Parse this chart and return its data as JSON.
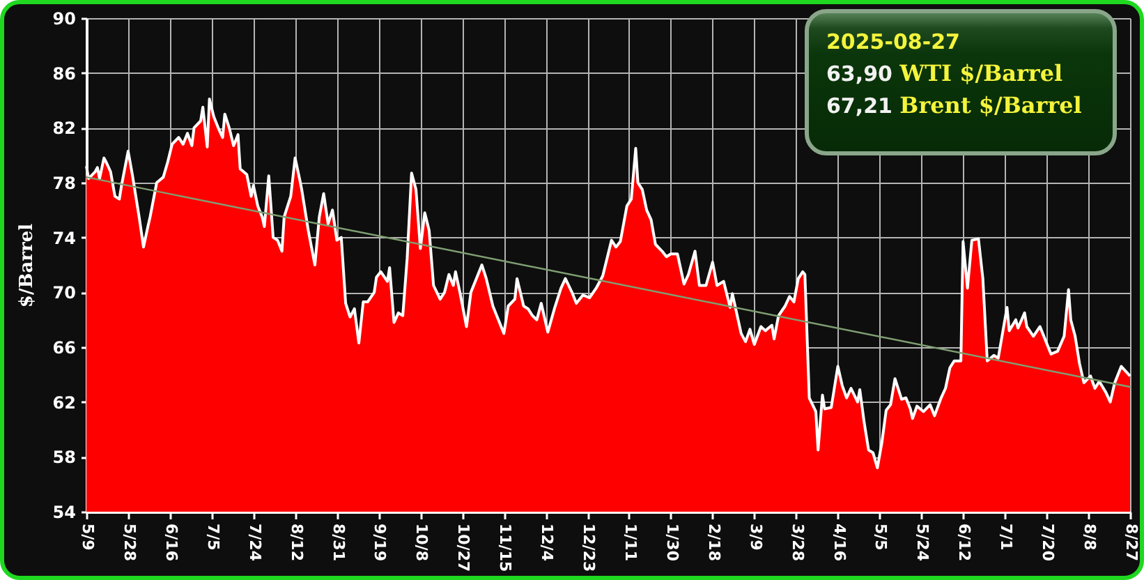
{
  "chart_data": {
    "type": "area",
    "ylabel": "$/Barrel",
    "annotations": [
      "2025-08-27",
      "63,90 WTI $/Barrel",
      "67,21 Brent $/Barrel"
    ],
    "xlim": [
      "2024-05-09",
      "2025-08-27"
    ],
    "xticks": [
      {
        "value": "2024-05-09",
        "label": "5/9"
      },
      {
        "value": "2024-05-28",
        "label": "5/28"
      },
      {
        "value": "2024-06-16",
        "label": "6/16"
      },
      {
        "value": "2024-07-05",
        "label": "7/5"
      },
      {
        "value": "2024-07-24",
        "label": "7/24"
      },
      {
        "value": "2024-08-12",
        "label": "8/12"
      },
      {
        "value": "2024-08-31",
        "label": "8/31"
      },
      {
        "value": "2024-09-19",
        "label": "9/19"
      },
      {
        "value": "2024-10-08",
        "label": "10/8"
      },
      {
        "value": "2024-10-27",
        "label": "10/27"
      },
      {
        "value": "2024-11-15",
        "label": "11/15"
      },
      {
        "value": "2024-12-04",
        "label": "12/4"
      },
      {
        "value": "2024-12-23",
        "label": "12/23"
      },
      {
        "value": "2025-01-11",
        "label": "1/11"
      },
      {
        "value": "2025-01-30",
        "label": "1/30"
      },
      {
        "value": "2025-02-18",
        "label": "2/18"
      },
      {
        "value": "2025-03-09",
        "label": "3/9"
      },
      {
        "value": "2025-03-28",
        "label": "3/28"
      },
      {
        "value": "2025-04-16",
        "label": "4/16"
      },
      {
        "value": "2025-05-05",
        "label": "5/5"
      },
      {
        "value": "2025-05-24",
        "label": "5/24"
      },
      {
        "value": "2025-06-12",
        "label": "6/12"
      },
      {
        "value": "2025-07-01",
        "label": "7/1"
      },
      {
        "value": "2025-07-20",
        "label": "7/20"
      },
      {
        "value": "2025-08-08",
        "label": "8/8"
      },
      {
        "value": "2025-08-27",
        "label": "8/27"
      }
    ],
    "ylim": [
      54,
      90
    ],
    "yticks": [
      54,
      58,
      62,
      66,
      70,
      74,
      78,
      82,
      86,
      90
    ],
    "grid": true,
    "x": [
      "2024-05-09",
      "2024-05-10",
      "2024-05-13",
      "2024-05-14",
      "2024-05-15",
      "2024-05-17",
      "2024-05-18",
      "2024-05-20",
      "2024-05-22",
      "2024-05-24",
      "2024-05-25",
      "2024-05-28",
      "2024-05-30",
      "2024-06-02",
      "2024-06-04",
      "2024-06-06",
      "2024-06-07",
      "2024-06-10",
      "2024-06-13",
      "2024-06-15",
      "2024-06-17",
      "2024-06-20",
      "2024-06-22",
      "2024-06-24",
      "2024-06-26",
      "2024-06-27",
      "2024-06-30",
      "2024-07-01",
      "2024-07-03",
      "2024-07-04",
      "2024-07-06",
      "2024-07-08",
      "2024-07-10",
      "2024-07-11",
      "2024-07-13",
      "2024-07-15",
      "2024-07-17",
      "2024-07-18",
      "2024-07-21",
      "2024-07-23",
      "2024-07-24",
      "2024-07-26",
      "2024-07-28",
      "2024-07-29",
      "2024-07-31",
      "2024-08-02",
      "2024-08-04",
      "2024-08-06",
      "2024-08-07",
      "2024-08-10",
      "2024-08-12",
      "2024-08-14",
      "2024-08-15",
      "2024-08-18",
      "2024-08-21",
      "2024-08-23",
      "2024-08-25",
      "2024-08-27",
      "2024-08-29",
      "2024-08-31",
      "2024-09-02",
      "2024-09-04",
      "2024-09-06",
      "2024-09-08",
      "2024-09-10",
      "2024-09-12",
      "2024-09-14",
      "2024-09-17",
      "2024-09-18",
      "2024-09-20",
      "2024-09-23",
      "2024-09-24",
      "2024-09-26",
      "2024-09-28",
      "2024-09-30",
      "2024-10-02",
      "2024-10-04",
      "2024-10-06",
      "2024-10-08",
      "2024-10-10",
      "2024-10-12",
      "2024-10-14",
      "2024-10-17",
      "2024-10-19",
      "2024-10-21",
      "2024-10-23",
      "2024-10-24",
      "2024-10-26",
      "2024-10-29",
      "2024-10-31",
      "2024-11-02",
      "2024-11-05",
      "2024-11-07",
      "2024-11-10",
      "2024-11-12",
      "2024-11-15",
      "2024-11-17",
      "2024-11-20",
      "2024-11-21",
      "2024-11-24",
      "2024-11-26",
      "2024-11-28",
      "2024-11-30",
      "2024-12-02",
      "2024-12-05",
      "2024-12-08",
      "2024-12-11",
      "2024-12-13",
      "2024-12-16",
      "2024-12-18",
      "2024-12-21",
      "2024-12-24",
      "2024-12-27",
      "2024-12-30",
      "2025-01-01",
      "2025-01-03",
      "2025-01-05",
      "2025-01-07",
      "2025-01-10",
      "2025-01-12",
      "2025-01-14",
      "2025-01-15",
      "2025-01-17",
      "2025-01-19",
      "2025-01-21",
      "2025-01-23",
      "2025-01-26",
      "2025-01-28",
      "2025-01-30",
      "2025-02-02",
      "2025-02-05",
      "2025-02-07",
      "2025-02-10",
      "2025-02-12",
      "2025-02-15",
      "2025-02-18",
      "2025-02-20",
      "2025-02-23",
      "2025-02-26",
      "2025-02-27",
      "2025-03-03",
      "2025-03-05",
      "2025-03-07",
      "2025-03-09",
      "2025-03-12",
      "2025-03-14",
      "2025-03-17",
      "2025-03-18",
      "2025-03-20",
      "2025-03-23",
      "2025-03-25",
      "2025-03-27",
      "2025-03-29",
      "2025-03-31",
      "2025-04-01",
      "2025-04-03",
      "2025-04-06",
      "2025-04-07",
      "2025-04-09",
      "2025-04-10",
      "2025-04-13",
      "2025-04-16",
      "2025-04-18",
      "2025-04-20",
      "2025-04-22",
      "2025-04-25",
      "2025-04-26",
      "2025-04-28",
      "2025-04-30",
      "2025-05-02",
      "2025-05-04",
      "2025-05-06",
      "2025-05-08",
      "2025-05-10",
      "2025-05-12",
      "2025-05-15",
      "2025-05-17",
      "2025-05-19",
      "2025-05-20",
      "2025-05-22",
      "2025-05-25",
      "2025-05-28",
      "2025-05-30",
      "2025-06-02",
      "2025-06-04",
      "2025-06-06",
      "2025-06-08",
      "2025-06-11",
      "2025-06-12",
      "2025-06-14",
      "2025-06-16",
      "2025-06-19",
      "2025-06-21",
      "2025-06-23",
      "2025-06-26",
      "2025-06-28",
      "2025-07-02",
      "2025-07-03",
      "2025-07-06",
      "2025-07-07",
      "2025-07-10",
      "2025-07-11",
      "2025-07-14",
      "2025-07-17",
      "2025-07-19",
      "2025-07-22",
      "2025-07-25",
      "2025-07-28",
      "2025-07-30",
      "2025-07-31",
      "2025-08-02",
      "2025-08-04",
      "2025-08-06",
      "2025-08-09",
      "2025-08-11",
      "2025-08-13",
      "2025-08-16",
      "2025-08-18",
      "2025-08-20",
      "2025-08-23",
      "2025-08-27"
    ],
    "series": [
      {
        "color": "#ff0000",
        "values": [
          79.2,
          78.3,
          78.8,
          79.1,
          78.3,
          79.8,
          79.5,
          78.8,
          77.0,
          76.8,
          77.8,
          80.3,
          78.5,
          75.5,
          73.3,
          74.8,
          75.5,
          78.0,
          78.4,
          79.5,
          80.8,
          81.3,
          80.8,
          81.6,
          80.7,
          82.0,
          82.5,
          83.5,
          80.6,
          84.1,
          82.8,
          82.0,
          81.3,
          83.0,
          82.0,
          80.7,
          81.5,
          79.0,
          78.6,
          77.0,
          77.8,
          76.3,
          75.5,
          74.8,
          78.5,
          74.0,
          73.8,
          73.0,
          75.5,
          77.0,
          79.8,
          78.3,
          77.5,
          74.5,
          72.0,
          75.5,
          77.2,
          75.0,
          76.0,
          73.8,
          74.0,
          69.2,
          68.2,
          68.8,
          66.3,
          69.3,
          69.3,
          70.0,
          71.1,
          71.5,
          70.8,
          71.8,
          67.8,
          68.5,
          68.3,
          72.5,
          78.7,
          77.5,
          73.2,
          75.8,
          74.5,
          70.5,
          69.5,
          70.0,
          71.3,
          70.5,
          71.5,
          70.0,
          67.5,
          70.0,
          70.8,
          72.0,
          71.0,
          69.0,
          68.2,
          67.0,
          69.0,
          69.5,
          71.0,
          69.0,
          68.8,
          68.3,
          68.0,
          69.2,
          67.1,
          68.8,
          70.3,
          71.0,
          70.0,
          69.2,
          69.8,
          69.6,
          70.3,
          71.2,
          72.5,
          73.8,
          73.3,
          73.7,
          76.3,
          76.8,
          80.5,
          78.0,
          77.5,
          76.0,
          75.3,
          73.5,
          73.0,
          72.6,
          72.8,
          72.8,
          70.6,
          71.3,
          73.0,
          70.5,
          70.5,
          72.2,
          70.5,
          70.8,
          68.9,
          69.9,
          67.0,
          66.4,
          67.3,
          66.2,
          67.5,
          67.2,
          67.6,
          66.6,
          68.3,
          69.0,
          69.7,
          69.3,
          71.0,
          71.5,
          71.3,
          62.3,
          61.3,
          58.5,
          62.5,
          61.5,
          61.6,
          64.6,
          63.2,
          62.3,
          63.0,
          62.0,
          62.9,
          60.5,
          58.5,
          58.3,
          57.2,
          59.0,
          61.4,
          61.8,
          63.7,
          62.2,
          62.3,
          61.5,
          60.8,
          61.7,
          61.3,
          61.8,
          61.0,
          62.3,
          63.0,
          64.5,
          65.0,
          65.0,
          73.7,
          70.3,
          73.8,
          73.9,
          71.0,
          65.0,
          65.4,
          65.2,
          68.9,
          67.2,
          68.0,
          67.4,
          68.5,
          67.5,
          66.8,
          67.5,
          66.7,
          65.5,
          65.7,
          66.8,
          70.2,
          68.0,
          66.8,
          64.8,
          63.4,
          63.9,
          63.0,
          63.5,
          62.7,
          62.0,
          63.4,
          64.6,
          63.9
        ]
      },
      {
        "type": "line",
        "color": "#7f9f72",
        "x": [
          "2024-05-09",
          "2025-08-27"
        ],
        "values": [
          78.4,
          63.1
        ]
      }
    ]
  }
}
